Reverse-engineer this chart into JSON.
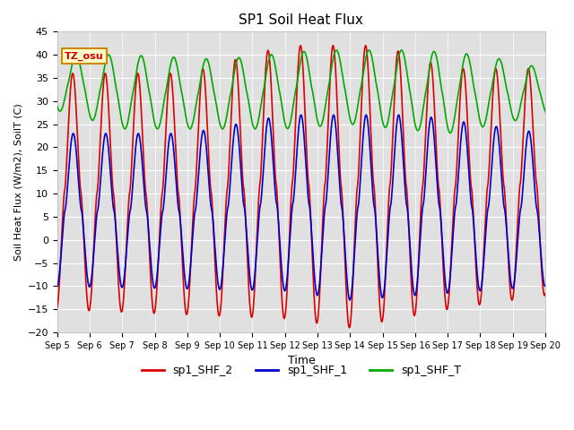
{
  "title": "SP1 Soil Heat Flux",
  "xlabel": "Time",
  "ylabel": "Soil Heat Flux (W/m2), SoilT (C)",
  "ylim": [
    -20,
    45
  ],
  "yticks": [
    -20,
    -15,
    -10,
    -5,
    0,
    5,
    10,
    15,
    20,
    25,
    30,
    35,
    40,
    45
  ],
  "xtick_labels": [
    "Sep 5",
    "Sep 6",
    "Sep 7",
    "Sep 8",
    "Sep 9",
    "Sep 10",
    "Sep 11",
    "Sep 12",
    "Sep 13",
    "Sep 14",
    "Sep 15",
    "Sep 16",
    "Sep 17",
    "Sep 18",
    "Sep 19",
    "Sep 20"
  ],
  "color_red": "#dd0000",
  "color_blue": "#0000cc",
  "color_green": "#00aa00",
  "bg_color": "#e0e0e0",
  "annotation_text": "TZ_osu",
  "annotation_bg": "#ffffcc",
  "annotation_border": "#cc8800",
  "legend_labels": [
    "sp1_SHF_2",
    "sp1_SHF_1",
    "sp1_SHF_T"
  ],
  "line_width": 1.2,
  "n_days": 15,
  "points_per_day": 480
}
